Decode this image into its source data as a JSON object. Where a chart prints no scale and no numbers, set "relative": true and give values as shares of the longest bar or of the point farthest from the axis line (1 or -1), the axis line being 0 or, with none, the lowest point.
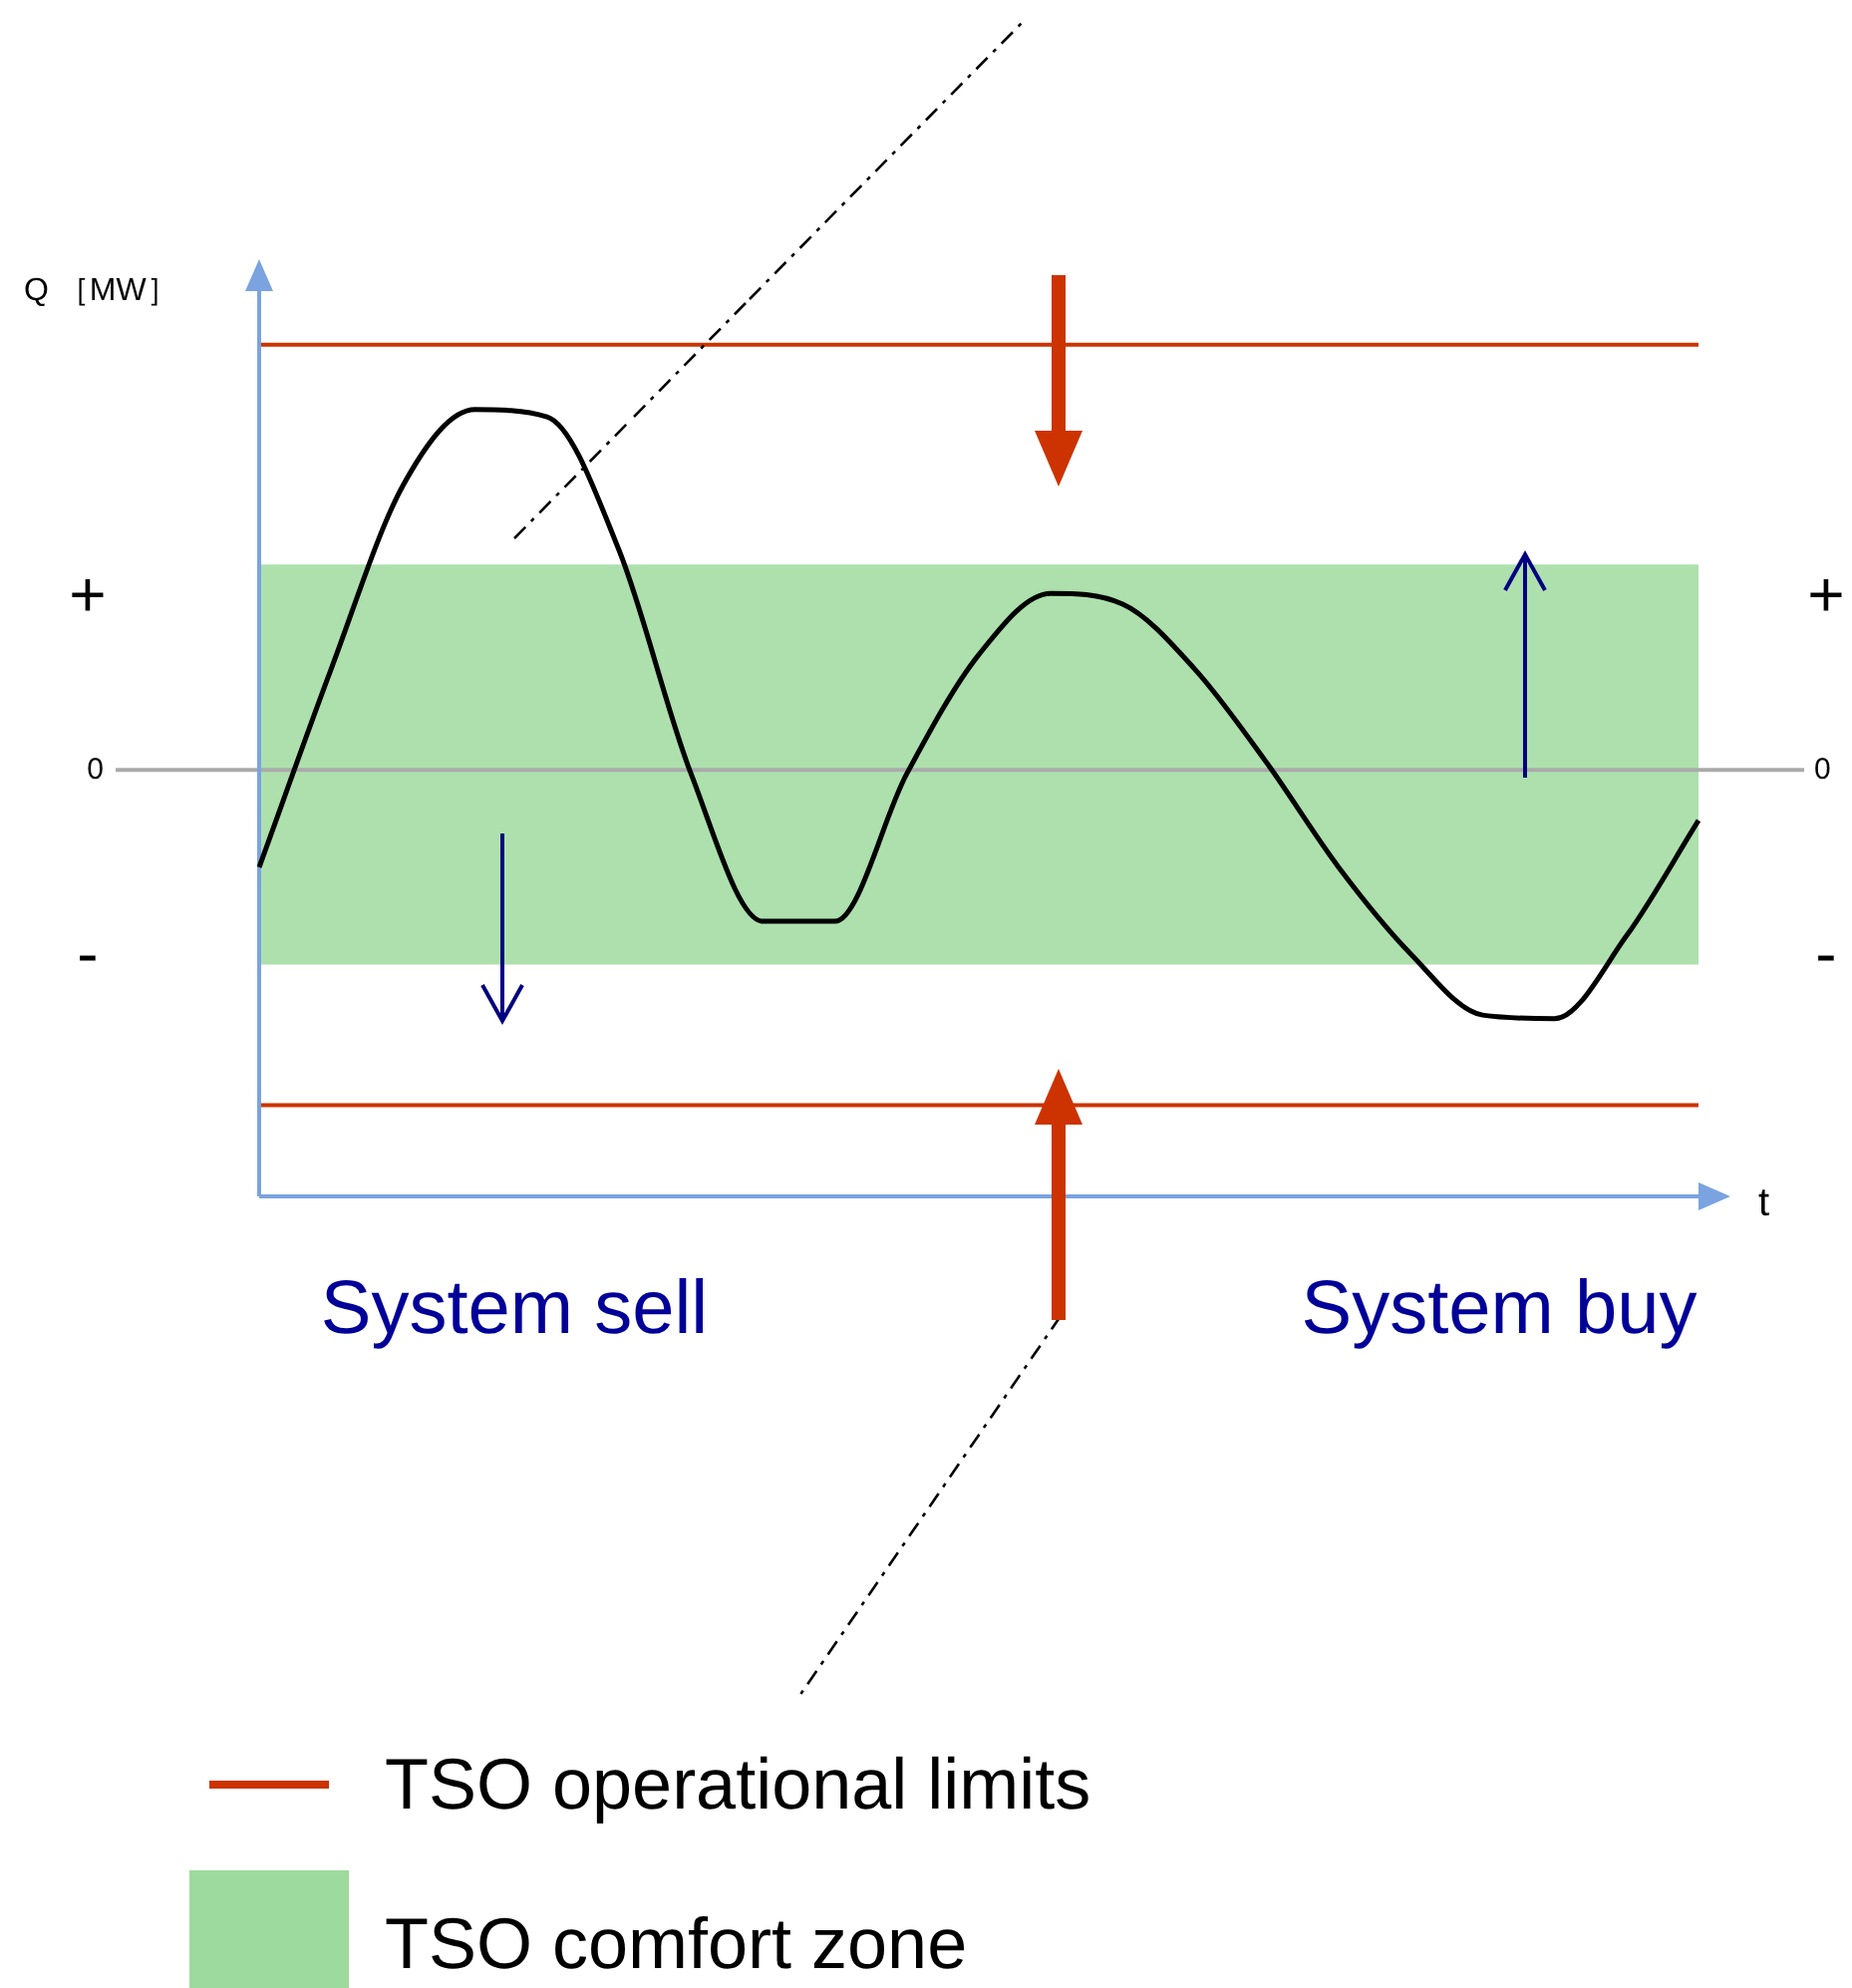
{
  "chart_data": {
    "type": "line",
    "relative": true,
    "ylabel": "Q ［MW］",
    "xlabel": "t",
    "marker": "none",
    "line_style": "solid",
    "legend": "bottom",
    "categories": [
      null,
      null,
      null,
      null,
      null,
      null,
      null,
      null,
      null,
      null,
      null,
      null,
      null,
      null,
      null,
      null,
      null,
      null,
      null,
      null,
      null
    ],
    "series": [
      {
        "color": "#000000",
        "values": [
          -0.27,
          0.28,
          0.79,
          1,
          0.98,
          0.61,
          -0.01,
          -0.42,
          -0.42,
          -0.01,
          0.32,
          0.49,
          0.46,
          0.28,
          0.02,
          -0.27,
          -0.51,
          -0.68,
          -0.69,
          -0.46,
          -0.14
        ]
      }
    ],
    "ref_lines": [
      {
        "axis": "y",
        "value": 1.18,
        "label": "TSO operational limits",
        "color": "#cc3300"
      },
      {
        "axis": "y",
        "value": -0.93,
        "color": "#cc3300"
      },
      {
        "axis": "y",
        "value": 0,
        "label": "0",
        "color": "#aaaaaa"
      }
    ],
    "bands": [
      {
        "axis": "y",
        "from": -0.54,
        "to": 0.57,
        "label": "TSO comfort zone",
        "color": "#5cc25c"
      }
    ],
    "annotations": [
      "+",
      "-",
      "System sell",
      "System buy"
    ]
  }
}
